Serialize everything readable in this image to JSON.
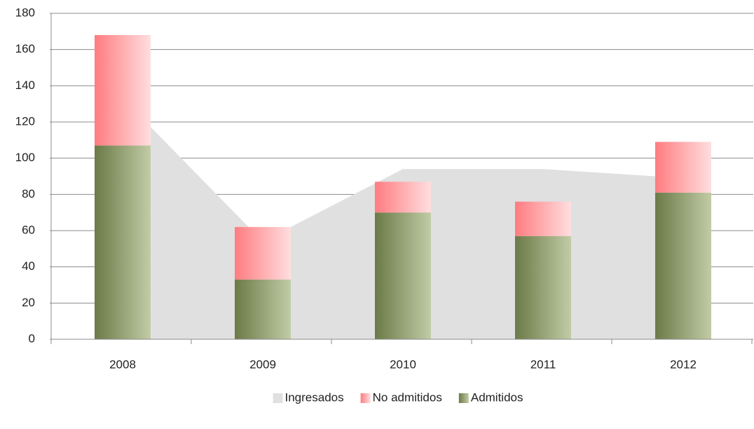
{
  "chart_data": {
    "type": "bar",
    "categories": [
      "2008",
      "2009",
      "2010",
      "2011",
      "2012"
    ],
    "series": [
      {
        "name": "Admitidos",
        "color": "#8ea25e",
        "stack": true,
        "values": [
          107,
          33,
          70,
          57,
          81
        ]
      },
      {
        "name": "No admitidos",
        "color": "#ff7c80",
        "stack": true,
        "values": [
          61,
          29,
          17,
          19,
          28
        ]
      },
      {
        "name": "Ingresados",
        "color": "#e0e0e0",
        "area": true,
        "values": [
          133,
          54,
          94,
          94,
          89
        ]
      }
    ],
    "ylim": [
      0,
      180
    ],
    "yticks": [
      0,
      20,
      40,
      60,
      80,
      100,
      120,
      140,
      160,
      180
    ],
    "grid": true,
    "legend": "bottom"
  }
}
